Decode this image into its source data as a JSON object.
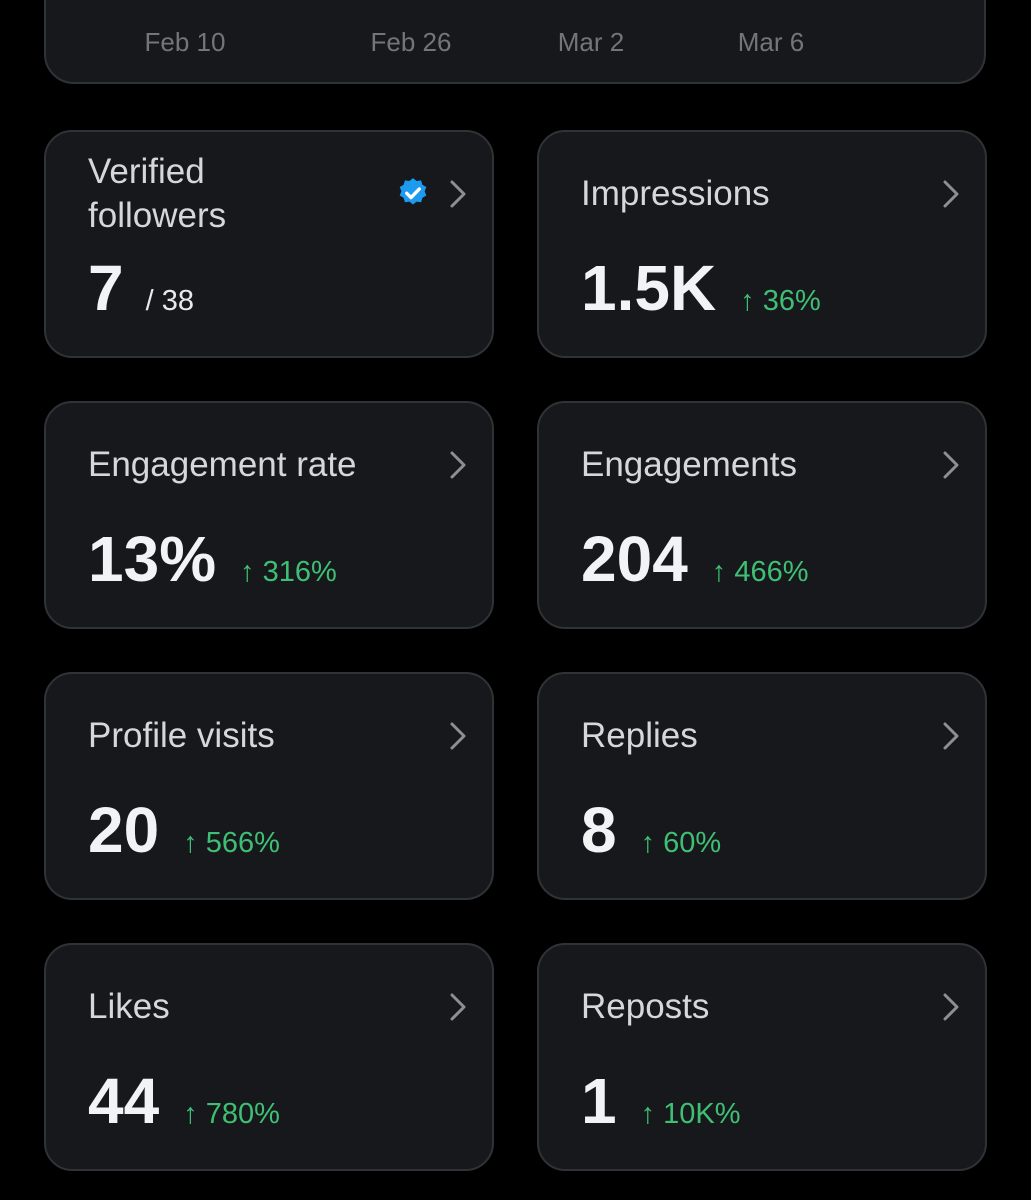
{
  "chart_axis": {
    "dates": [
      "Feb 10",
      "Feb 26",
      "Mar 2",
      "Mar 6"
    ]
  },
  "metrics": [
    {
      "title": "Verified followers",
      "value": "7",
      "sub": "/ 38",
      "change": "",
      "verified_icon": "verified-badge-icon",
      "chevron_icon": "chevron-right-icon"
    },
    {
      "title": "Impressions",
      "value": "1.5K",
      "sub": "",
      "change": "↑ 36%",
      "chevron_icon": "chevron-right-icon"
    },
    {
      "title": "Engagement rate",
      "value": "13%",
      "sub": "",
      "change": "↑ 316%",
      "chevron_icon": "chevron-right-icon"
    },
    {
      "title": "Engagements",
      "value": "204",
      "sub": "",
      "change": "↑ 466%",
      "chevron_icon": "chevron-right-icon"
    },
    {
      "title": "Profile visits",
      "value": "20",
      "sub": "",
      "change": "↑ 566%",
      "chevron_icon": "chevron-right-icon"
    },
    {
      "title": "Replies",
      "value": "8",
      "sub": "",
      "change": "↑ 60%",
      "chevron_icon": "chevron-right-icon"
    },
    {
      "title": "Likes",
      "value": "44",
      "sub": "",
      "change": "↑ 780%",
      "chevron_icon": "chevron-right-icon"
    },
    {
      "title": "Reposts",
      "value": "1",
      "sub": "",
      "change": "↑ 10K%",
      "chevron_icon": "chevron-right-icon"
    }
  ],
  "colors": {
    "background": "#000000",
    "card": "#16181c",
    "border": "#2f3336",
    "positive": "#3fbf73",
    "verified": "#1d9bf0",
    "muted": "#71767b"
  }
}
